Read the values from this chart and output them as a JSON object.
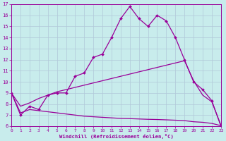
{
  "xlabel": "Windchill (Refroidissement éolien,°C)",
  "background_color": "#c8ecec",
  "line_color": "#990099",
  "grid_color": "#b0c8d8",
  "xlim": [
    0,
    23
  ],
  "ylim": [
    6,
    17
  ],
  "xticks": [
    0,
    1,
    2,
    3,
    4,
    5,
    6,
    7,
    8,
    9,
    10,
    11,
    12,
    13,
    14,
    15,
    16,
    17,
    18,
    19,
    20,
    21,
    22,
    23
  ],
  "yticks": [
    6,
    7,
    8,
    9,
    10,
    11,
    12,
    13,
    14,
    15,
    16,
    17
  ],
  "series1_x": [
    0,
    1,
    2,
    3,
    4,
    5,
    6,
    7,
    8,
    9,
    10,
    11,
    12,
    13,
    14,
    15,
    16,
    17,
    18,
    19,
    20,
    21,
    22,
    23
  ],
  "series1_y": [
    9.0,
    7.0,
    7.8,
    7.5,
    8.8,
    9.0,
    9.0,
    10.5,
    10.8,
    12.2,
    12.5,
    14.0,
    15.7,
    16.8,
    15.7,
    15.0,
    16.0,
    15.5,
    14.0,
    12.0,
    10.0,
    9.3,
    8.3,
    6.0
  ],
  "series2_x": [
    0,
    1,
    2,
    3,
    4,
    5,
    6,
    7,
    8,
    9,
    10,
    11,
    12,
    13,
    14,
    15,
    16,
    17,
    18,
    19,
    20,
    21,
    22,
    23
  ],
  "series2_y": [
    9.0,
    7.8,
    8.1,
    8.5,
    8.8,
    9.1,
    9.3,
    9.5,
    9.7,
    9.9,
    10.1,
    10.3,
    10.5,
    10.7,
    10.9,
    11.1,
    11.3,
    11.5,
    11.7,
    11.9,
    10.1,
    8.8,
    8.2,
    6.1
  ],
  "series3_x": [
    0,
    1,
    2,
    3,
    4,
    5,
    6,
    7,
    8,
    9,
    10,
    11,
    12,
    13,
    14,
    15,
    16,
    17,
    18,
    19,
    20,
    21,
    22,
    23
  ],
  "series3_y": [
    9.0,
    7.2,
    7.5,
    7.4,
    7.3,
    7.2,
    7.1,
    7.0,
    6.9,
    6.85,
    6.8,
    6.75,
    6.7,
    6.68,
    6.65,
    6.62,
    6.6,
    6.57,
    6.54,
    6.5,
    6.4,
    6.35,
    6.25,
    6.05
  ]
}
